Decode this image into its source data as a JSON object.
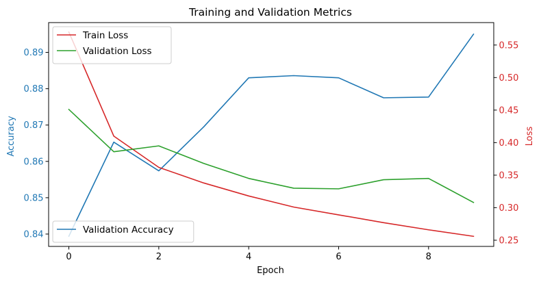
{
  "chart_data": {
    "type": "line",
    "title": "Training and Validation Metrics",
    "xlabel": "Epoch",
    "x": [
      0,
      1,
      2,
      3,
      4,
      5,
      6,
      7,
      8,
      9
    ],
    "xlim": [
      -0.45,
      9.45
    ],
    "xticks": [
      0,
      2,
      4,
      6,
      8
    ],
    "y_left": {
      "label": "Accuracy",
      "color": "#1f77b4",
      "lim": [
        0.8366,
        0.8982
      ],
      "ticks": [
        0.84,
        0.85,
        0.86,
        0.87,
        0.88,
        0.89
      ],
      "tick_labels": [
        "0.84",
        "0.85",
        "0.86",
        "0.87",
        "0.88",
        "0.89"
      ]
    },
    "y_right": {
      "label": "Loss",
      "color": "#d62728",
      "lim": [
        0.2405,
        0.5845
      ],
      "ticks": [
        0.25,
        0.3,
        0.35,
        0.4,
        0.45,
        0.5,
        0.55
      ],
      "tick_labels": [
        "0.25",
        "0.30",
        "0.35",
        "0.40",
        "0.45",
        "0.50",
        "0.55"
      ]
    },
    "series": [
      {
        "name": "Validation Accuracy",
        "axis": "left",
        "color": "#1f77b4",
        "values": [
          0.8394,
          0.8653,
          0.8574,
          0.8695,
          0.883,
          0.8836,
          0.883,
          0.8775,
          0.8777,
          0.895
        ]
      },
      {
        "name": "Train Loss",
        "axis": "right",
        "color": "#d62728",
        "values": [
          0.57,
          0.41,
          0.362,
          0.338,
          0.318,
          0.301,
          0.289,
          0.277,
          0.266,
          0.256
        ]
      },
      {
        "name": "Validation Loss",
        "axis": "right",
        "color": "#2ca02c",
        "values": [
          0.451,
          0.386,
          0.395,
          0.368,
          0.345,
          0.33,
          0.329,
          0.343,
          0.345,
          0.308
        ]
      }
    ],
    "legends": [
      {
        "placement": "upper-left",
        "entries": [
          "Train Loss",
          "Validation Loss"
        ]
      },
      {
        "placement": "lower-left",
        "entries": [
          "Validation Accuracy"
        ]
      }
    ],
    "grid": false
  }
}
